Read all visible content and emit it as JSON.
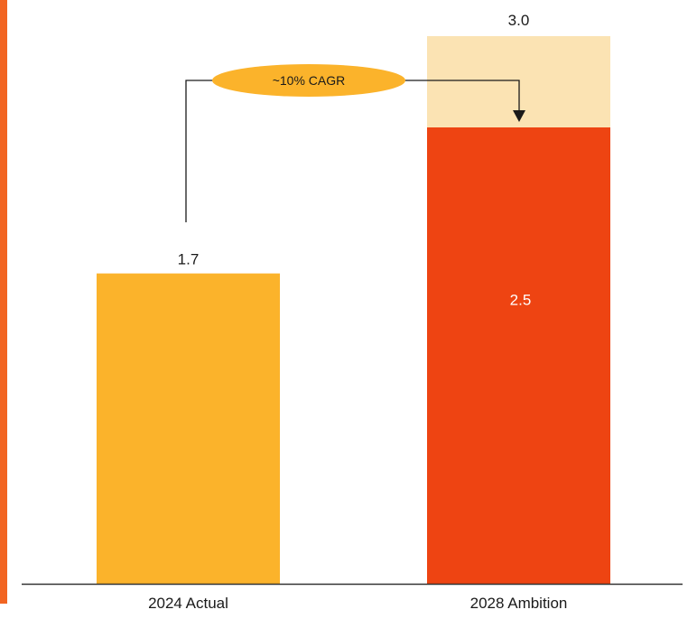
{
  "chart_data": {
    "type": "bar",
    "categories": [
      "2024 Actual",
      "2028 Ambition"
    ],
    "series": [
      {
        "values": [
          1.7,
          2.5
        ],
        "color_by_category": [
          "#FBB32B",
          "#EE4412"
        ]
      },
      {
        "values": [
          null,
          0.5
        ],
        "color": "#FBE3B3"
      }
    ],
    "data_labels": {
      "actual_total": "1.7",
      "ambition_total": "3.0",
      "ambition_base": "2.5"
    },
    "annotation": {
      "text": "~10% CAGR",
      "color": "#FBB32B"
    },
    "ylim": [
      0,
      3.0
    ],
    "accent_edge_color": "#F26522",
    "axis_color": "#333333"
  }
}
